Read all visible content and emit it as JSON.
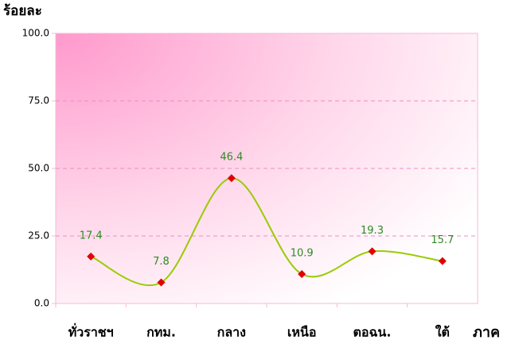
{
  "chart_data": {
    "type": "line",
    "y_axis_label": "ร้อยละ",
    "x_axis_label": "ภาค",
    "categories": [
      "ทั่วราชฯ",
      "กทม.",
      "กลาง",
      "เหนือ",
      "ตอฉน.",
      "ใต้"
    ],
    "series": [
      {
        "name": null,
        "color": "#99cc00",
        "marker_color": "#e00000",
        "values": [
          17.4,
          7.8,
          46.4,
          10.9,
          19.3,
          15.7
        ]
      }
    ],
    "ylim": [
      0,
      100
    ],
    "yticks": [
      {
        "value": 0,
        "label": "0.0"
      },
      {
        "value": 25,
        "label": "25.0"
      },
      {
        "value": 50,
        "label": "50.0"
      },
      {
        "value": 75,
        "label": "75.0"
      },
      {
        "value": 100,
        "label": "100.0"
      }
    ],
    "grid": true
  }
}
